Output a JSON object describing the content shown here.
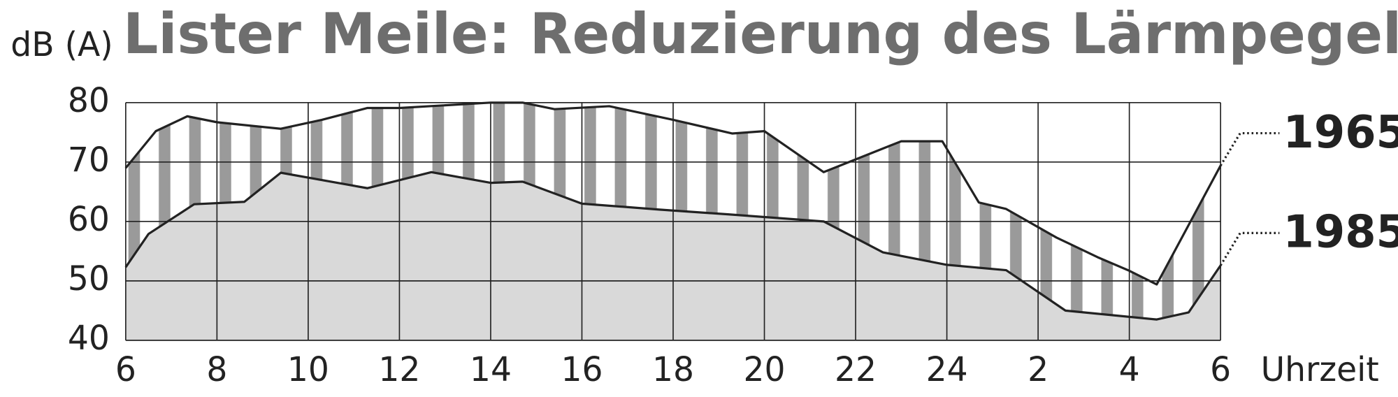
{
  "chart_data": {
    "type": "line",
    "title": "Lister Meile: Reduzierung des Lärmpegels",
    "y_label": "dB (A)",
    "x_label": "Uhrzeit",
    "xlim": [
      6,
      30
    ],
    "xticks": [
      6,
      8,
      10,
      12,
      14,
      16,
      18,
      20,
      22,
      24,
      {
        "value": 26,
        "label": "2"
      },
      {
        "value": 28,
        "label": "4"
      },
      {
        "value": 30,
        "label": "6"
      }
    ],
    "ylim": [
      40,
      80
    ],
    "yticks": [
      40,
      50,
      60,
      70,
      80
    ],
    "grid": true,
    "series": [
      {
        "name": "1965",
        "color": "#222222",
        "x": [
          6.0,
          6.66,
          7.35,
          8.0,
          9.4,
          10.3,
          11.3,
          12.0,
          14.0,
          14.7,
          15.4,
          16.6,
          18.0,
          19.3,
          20.0,
          21.3,
          23.0,
          23.9,
          24.7,
          25.3,
          26.4,
          27.3,
          28.0,
          28.6,
          30.0
        ],
        "values": [
          69,
          75.2,
          77.7,
          76.7,
          75.6,
          77.1,
          79.1,
          79.1,
          80,
          80,
          78.9,
          79.4,
          77.1,
          74.8,
          75.2,
          68.3,
          73.5,
          73.5,
          63.2,
          62.1,
          57.3,
          54.0,
          51.7,
          49.4,
          69.4
        ]
      },
      {
        "name": "1985",
        "color": "#222222",
        "x": [
          6.0,
          6.5,
          7.5,
          8.6,
          9.4,
          11.3,
          12.7,
          14.0,
          14.7,
          16.0,
          17.7,
          19.2,
          21.3,
          22.6,
          24.0,
          25.3,
          26.6,
          28.6,
          29.3,
          30.0
        ],
        "values": [
          52.3,
          57.9,
          62.9,
          63.3,
          68.2,
          65.6,
          68.3,
          66.5,
          66.7,
          63.0,
          62.0,
          61.2,
          60.0,
          54.8,
          52.7,
          51.8,
          45.0,
          43.5,
          44.7,
          52.6
        ]
      }
    ]
  }
}
